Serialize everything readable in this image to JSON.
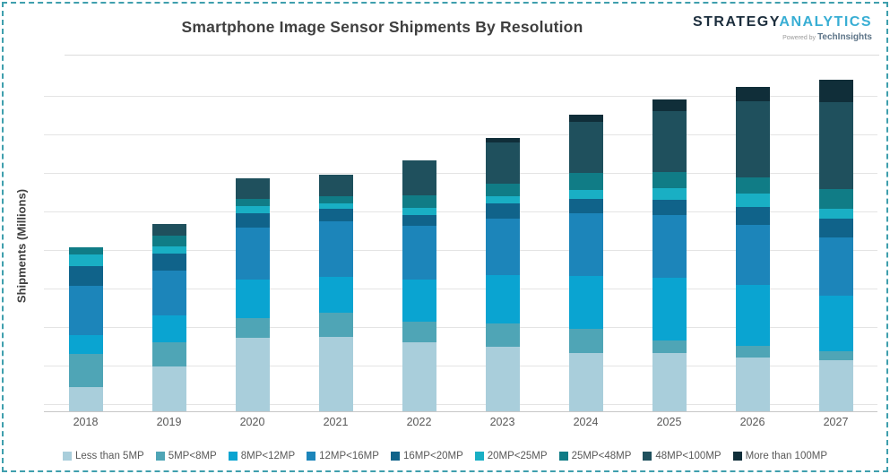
{
  "header": {
    "title": "Smartphone Image Sensor Shipments By Resolution",
    "logo": {
      "part1": "STRATEGY",
      "part2": "ANALYTICS",
      "powered_by": "Powered by",
      "techinsights": "TechInsights"
    }
  },
  "chart": {
    "y_axis_label": "Shipments (Millions)"
  },
  "chart_data": {
    "type": "bar",
    "stacked": true,
    "title": "Smartphone Image Sensor Shipments By Resolution",
    "ylabel": "Shipments (Millions)",
    "xlabel": "",
    "categories": [
      "2018",
      "2019",
      "2020",
      "2021",
      "2022",
      "2023",
      "2024",
      "2025",
      "2026",
      "2027"
    ],
    "series": [
      {
        "name": "Less than 5MP",
        "color": "#a9cedb",
        "values": [
          640,
          1170,
          1900,
          1940,
          1790,
          1670,
          1520,
          1520,
          1400,
          1330
        ]
      },
      {
        "name": "5MP<8MP",
        "color": "#4fa5b6",
        "values": [
          840,
          620,
          510,
          620,
          540,
          620,
          620,
          310,
          310,
          230
        ]
      },
      {
        "name": "8MP<12MP",
        "color": "#0aa4d1",
        "values": [
          510,
          700,
          1010,
          930,
          1090,
          1240,
          1360,
          1630,
          1560,
          1440
        ]
      },
      {
        "name": "12MP<16MP",
        "color": "#1c85ba",
        "values": [
          1280,
          1170,
          1360,
          1440,
          1400,
          1480,
          1630,
          1630,
          1560,
          1520
        ]
      },
      {
        "name": "16MP<20MP",
        "color": "#10638a",
        "values": [
          510,
          430,
          370,
          330,
          270,
          390,
          390,
          390,
          470,
          470
        ]
      },
      {
        "name": "20MP<25MP",
        "color": "#19afc4",
        "values": [
          300,
          190,
          180,
          140,
          180,
          190,
          230,
          310,
          350,
          270
        ]
      },
      {
        "name": "25MP<48MP",
        "color": "#107c86",
        "values": [
          180,
          270,
          190,
          190,
          330,
          310,
          430,
          430,
          430,
          510
        ]
      },
      {
        "name": "48MP<100MP",
        "color": "#1f505d",
        "values": [
          0,
          310,
          520,
          540,
          910,
          1070,
          1320,
          1560,
          1980,
          2250
        ]
      },
      {
        "name": "More than 100MP",
        "color": "#102e39",
        "values": [
          0,
          0,
          0,
          0,
          0,
          120,
          190,
          310,
          370,
          580
        ]
      }
    ],
    "ylim": [
      0,
      9000
    ],
    "y_ticks_labeled": false,
    "gridlines": "horizontal",
    "legend_position": "bottom"
  }
}
